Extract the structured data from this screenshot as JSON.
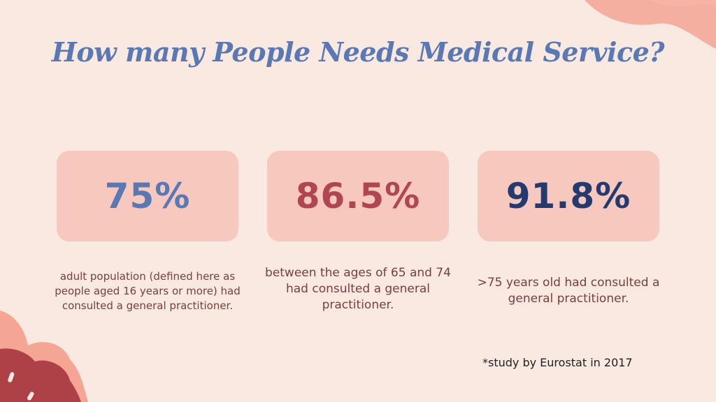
{
  "colors": {
    "background": "#f9e9e1",
    "card": "#f7c8bd",
    "title": "#5a78b4",
    "stat_1": "#5a78b4",
    "stat_2": "#b0464f",
    "stat_3": "#243970",
    "description": "#7a3e3e",
    "decoration_coral": "#f4a594",
    "decoration_pink": "#f7b3a6",
    "decoration_maroon": "#ae4148"
  },
  "title": "How many People Needs Medical Service?",
  "stats": [
    {
      "value": "75%",
      "description": "adult population (defined here as people aged 16 years or more) had consulted a general practitioner."
    },
    {
      "value": "86.5%",
      "description": "between the ages of 65 and 74 had consulted a general practitioner."
    },
    {
      "value": "91.8%",
      "description": ">75 years old  had consulted a general practitioner."
    }
  ],
  "footnote": "*study by Eurostat in 2017"
}
